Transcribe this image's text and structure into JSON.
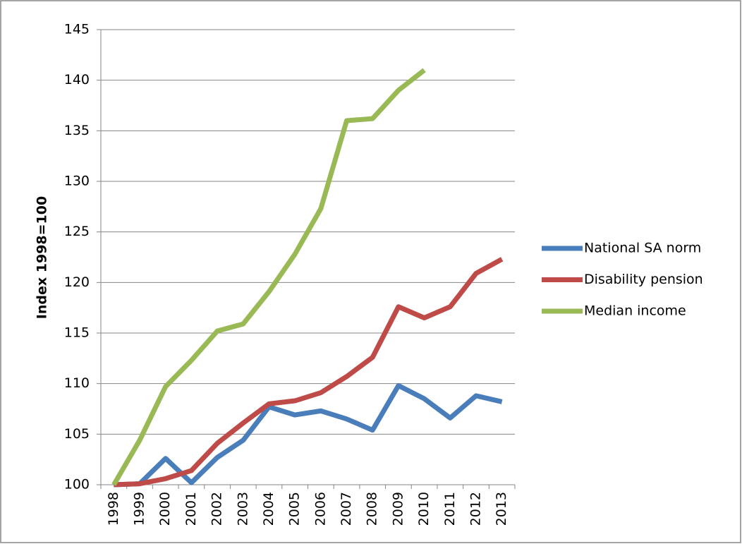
{
  "chart_data": {
    "type": "line",
    "y_label": "Index 1998=100",
    "categories": [
      "1998",
      "1999",
      "2000",
      "2001",
      "2002",
      "2003",
      "2004",
      "2005",
      "2006",
      "2007",
      "2008",
      "2009",
      "2010",
      "2011",
      "2012",
      "2013"
    ],
    "series": [
      {
        "name": "National SA norm",
        "color": "#4a7ebb",
        "values": [
          100,
          100.1,
          102.6,
          100.2,
          102.7,
          104.4,
          107.7,
          106.9,
          107.3,
          106.5,
          105.4,
          109.8,
          108.5,
          106.6,
          108.8,
          108.2
        ]
      },
      {
        "name": "Disability pension",
        "color": "#be4b48",
        "values": [
          100,
          100.1,
          100.6,
          101.4,
          104.1,
          106.1,
          108.0,
          108.3,
          109.1,
          110.7,
          112.6,
          117.6,
          116.5,
          117.6,
          120.9,
          122.3
        ]
      },
      {
        "name": "Median income",
        "color": "#98b954",
        "values": [
          100,
          104.4,
          109.7,
          112.3,
          115.2,
          115.9,
          119.1,
          122.8,
          127.3,
          136.0,
          136.2,
          139.0,
          141.0,
          null,
          null,
          null
        ]
      }
    ],
    "ylim": [
      100,
      145
    ],
    "yticks": [
      100,
      105,
      110,
      115,
      120,
      125,
      130,
      135,
      140,
      145
    ],
    "grid": true,
    "legend": "right"
  }
}
